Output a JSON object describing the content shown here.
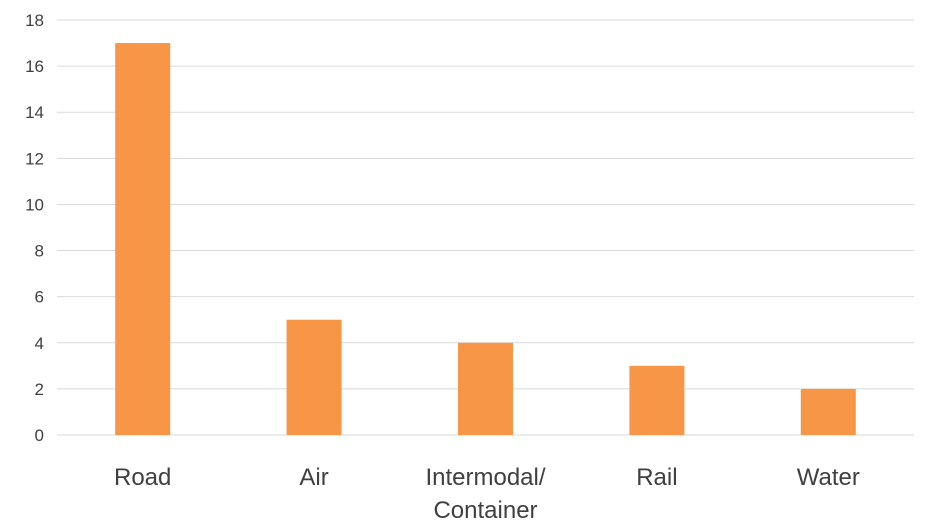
{
  "chart_data": {
    "type": "bar",
    "title": "",
    "xlabel": "",
    "ylabel": "",
    "categories": [
      [
        "Road"
      ],
      [
        "Air"
      ],
      [
        "Intermodal/",
        "Container"
      ],
      [
        "Rail"
      ],
      [
        "Water"
      ]
    ],
    "values": [
      17,
      5,
      4,
      3,
      2
    ],
    "ylim": [
      0,
      18
    ],
    "yticks": [
      "0",
      "2",
      "4",
      "6",
      "8",
      "10",
      "12",
      "14",
      "16",
      "18"
    ],
    "grid": true,
    "legend": "none",
    "bar_color": "#f79646"
  }
}
